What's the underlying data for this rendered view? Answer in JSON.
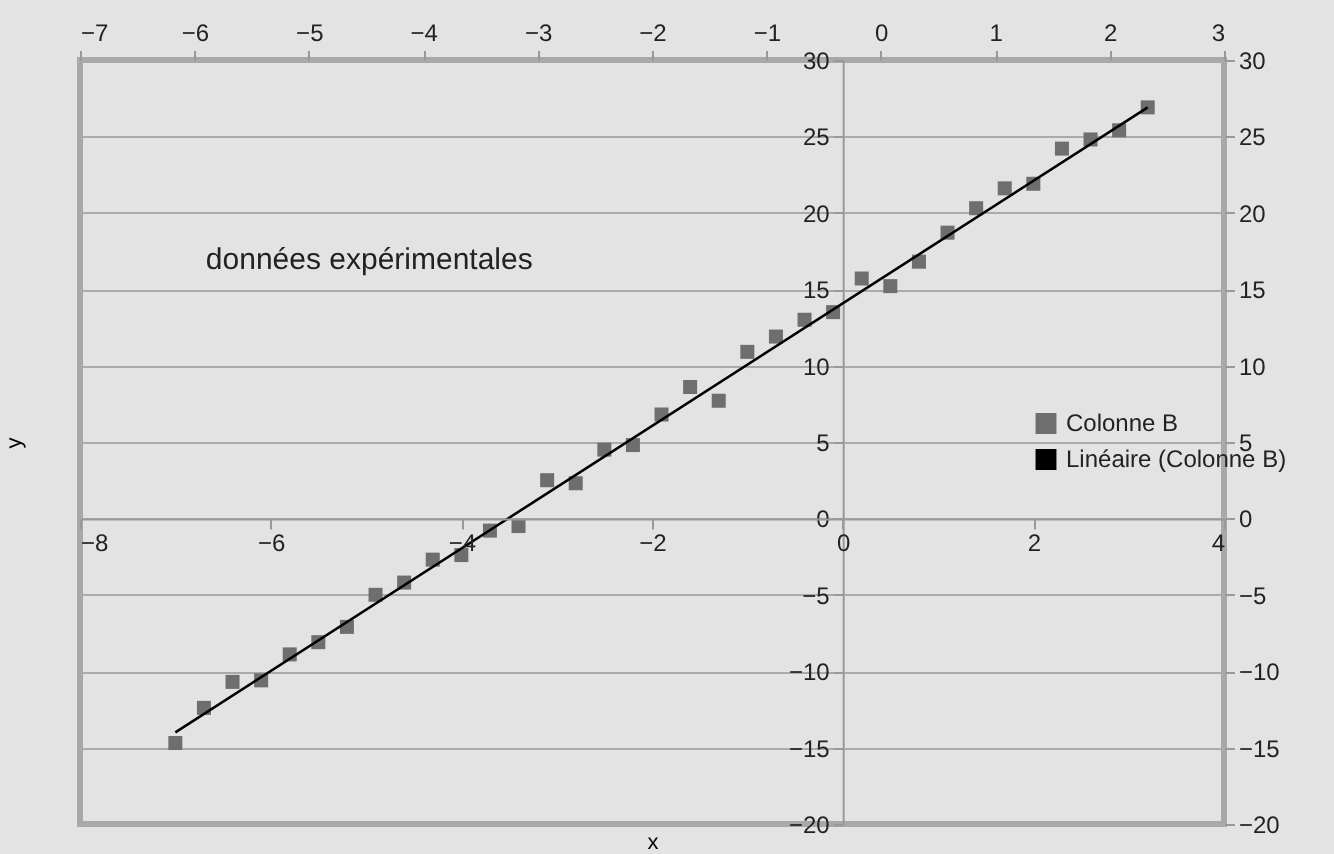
{
  "chart_data": {
    "type": "scatter",
    "xlabel": "x",
    "ylabel": "y",
    "annotations": [
      "données expérimentales"
    ],
    "x": [
      -7,
      -6.7,
      -6.4,
      -6.1,
      -5.8,
      -5.5,
      -5.2,
      -4.9,
      -4.6,
      -4.3,
      -4,
      -3.7,
      -3.4,
      -3.1,
      -2.8,
      -2.5,
      -2.2,
      -1.9,
      -1.6,
      -1.3,
      -1,
      -0.7,
      -0.4,
      -0.1,
      0.2,
      0.5,
      0.8,
      1.1,
      1.4,
      1.7,
      2,
      2.3,
      2.6,
      2.9,
      3.2
    ],
    "series": [
      {
        "name": "Colonne B",
        "color": "#6e6e6e",
        "values": [
          -14.7,
          -12.4,
          -10.7,
          -10.6,
          -8.9,
          -8.1,
          -7.1,
          -5.0,
          -4.2,
          -2.7,
          -2.4,
          -0.8,
          -0.5,
          2.5,
          2.3,
          4.5,
          4.8,
          6.8,
          8.6,
          7.7,
          10.9,
          11.9,
          13.0,
          13.5,
          15.7,
          15.2,
          16.8,
          18.7,
          20.3,
          21.6,
          21.9,
          24.2,
          24.8,
          25.4,
          26.9
        ]
      },
      {
        "name": "Linéaire (Colonne B)",
        "type": "line",
        "marker": "none",
        "color": "#000000",
        "x": [
          -7,
          3.2
        ],
        "values": [
          -14,
          26.9
        ]
      }
    ],
    "xlim": [
      -8,
      4
    ],
    "xticks": [
      -8,
      -6,
      -4,
      -2,
      0,
      2,
      4
    ],
    "x2lim": [
      -7,
      3
    ],
    "x2ticks": [
      -7,
      -6,
      -5,
      -4,
      -3,
      -2,
      -1,
      0,
      1,
      2,
      3
    ],
    "ylim": [
      -20,
      30
    ],
    "yticks": [
      -20,
      -15,
      -10,
      -5,
      0,
      5,
      10,
      15,
      20,
      25,
      30
    ],
    "y2lim": [
      -20,
      30
    ],
    "y2ticks": [
      -20,
      -15,
      -10,
      -5,
      0,
      5,
      10,
      15,
      20,
      25,
      30
    ],
    "grid": "y",
    "legend": "right",
    "marker": "square"
  }
}
